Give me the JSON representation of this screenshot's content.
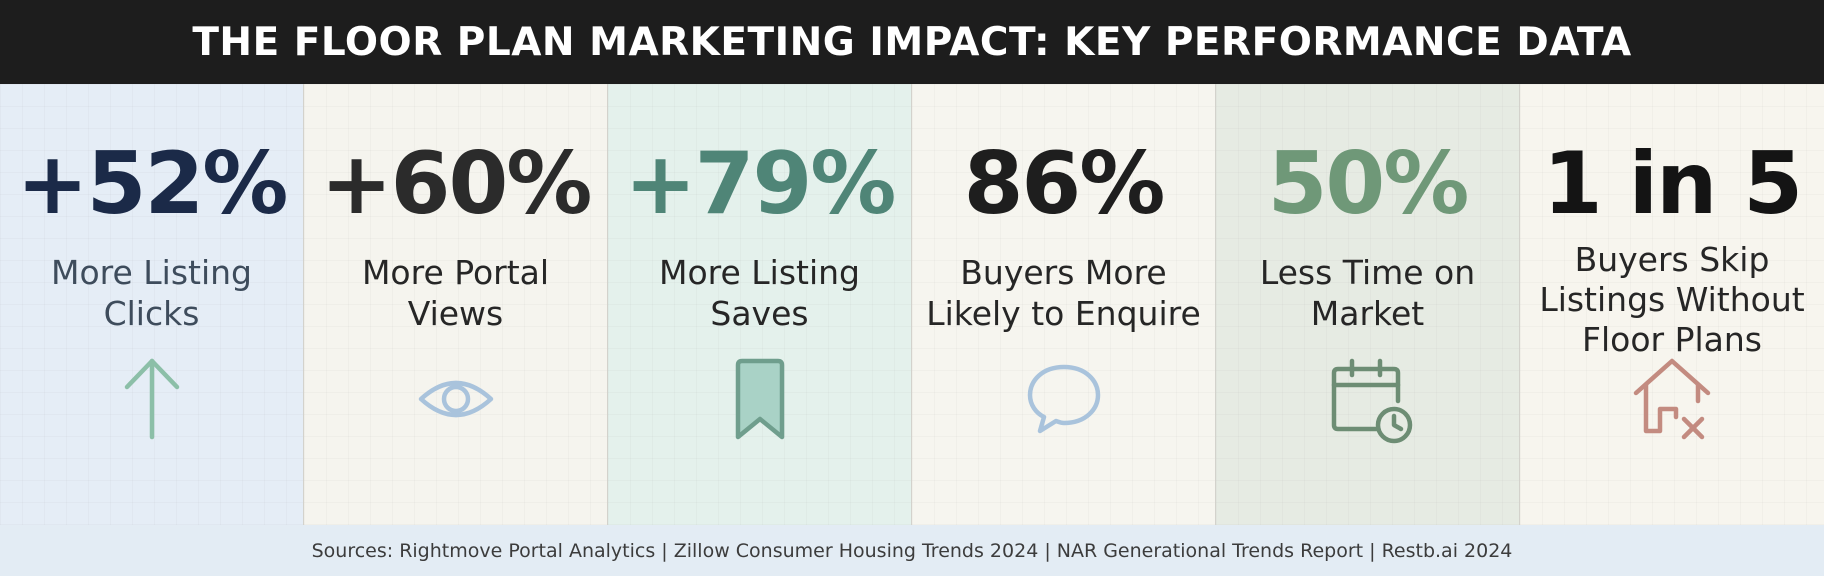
{
  "title": "THE FLOOR PLAN MARKETING IMPACT: KEY PERFORMANCE DATA",
  "panels": [
    {
      "stat": "+52%",
      "label": "More Listing Clicks",
      "stat_color": "#1b2a48",
      "icon": "arrow-up-icon",
      "icon_color": "#8cbfa8"
    },
    {
      "stat": "+60%",
      "label": "More Portal Views",
      "stat_color": "#2b2b2b",
      "icon": "eye-icon",
      "icon_color": "#a9c3dc"
    },
    {
      "stat": "+79%",
      "label": "More Listing Saves",
      "stat_color": "#4f8577",
      "icon": "bookmark-icon",
      "icon_color": "#6f9e8d"
    },
    {
      "stat": "86%",
      "label": "Buyers More Likely to Enquire",
      "stat_color": "#1e1e1e",
      "icon": "speech-bubble-icon",
      "icon_color": "#a9c3dc"
    },
    {
      "stat": "50%",
      "label": "Less Time on Market",
      "stat_color": "#6f9878",
      "icon": "calendar-clock-icon",
      "icon_color": "#6d8d74"
    },
    {
      "stat": "1 in 5",
      "label": "Buyers Skip Listings Without Floor Plans",
      "stat_color": "#141414",
      "icon": "house-x-icon",
      "icon_color": "#c38b80"
    }
  ],
  "sources": "Sources: Rightmove Portal Analytics | Zillow Consumer Housing Trends 2024 | NAR Generational Trends Report | Restb.ai 2024"
}
